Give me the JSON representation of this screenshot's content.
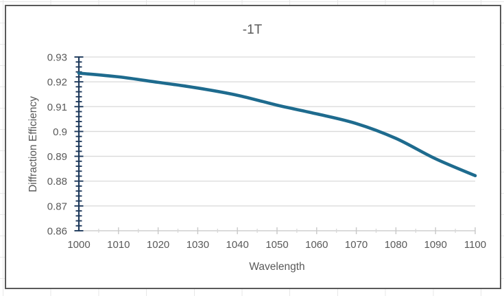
{
  "chart_data": {
    "type": "line",
    "title": "-1T",
    "xlabel": "Wavelength",
    "ylabel": "Diffraction Efficiency",
    "x": [
      1000,
      1010,
      1020,
      1030,
      1040,
      1050,
      1060,
      1070,
      1080,
      1090,
      1100
    ],
    "y": [
      0.9235,
      0.922,
      0.9198,
      0.9175,
      0.9146,
      0.9106,
      0.9071,
      0.9032,
      0.8972,
      0.889,
      0.8822
    ],
    "xlim": [
      1000,
      1100
    ],
    "ylim": [
      0.86,
      0.93
    ],
    "x_tick_labels": [
      "1000",
      "1010",
      "1020",
      "1030",
      "1040",
      "1050",
      "1060",
      "1070",
      "1080",
      "1090",
      "1100"
    ],
    "x_minor_unit": 5,
    "y_tick_labels": [
      "0.93",
      "0.92",
      "0.91",
      "0.9",
      "0.89",
      "0.88",
      "0.87",
      "0.86"
    ],
    "y_major_unit": 0.01,
    "y_minor_unit": 0.002,
    "grid": "horizontal-major-only",
    "legend": "none",
    "colors": {
      "series_line": "#1e6b8e",
      "y_axis_and_ticks": "#1f3a5c",
      "gridlines": "#d9d9d9",
      "x_axis_line": "#cfcfcf",
      "x_major_tick": "#c8c8c8",
      "x_minor_tick": "#d8d8d8",
      "tick_labels": "#595959",
      "titles": "#595959",
      "chart_border": "#595959"
    }
  }
}
